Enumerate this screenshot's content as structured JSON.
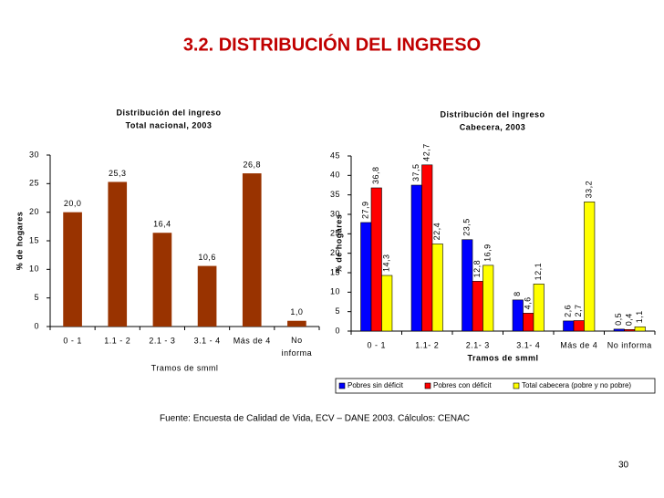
{
  "title": "3.2. DISTRIBUCIÓN DEL INGRESO",
  "source": "Fuente: Encuesta de Calidad de Vida, ECV – DANE 2003. Cálculos: CENAC",
  "page_number": "30",
  "chart_data": [
    {
      "type": "bar",
      "title": "Distribución del ingreso",
      "subtitle": "Total nacional, 2003",
      "x_label": "Tramos de smml",
      "y_label": "% de hogares",
      "categories": [
        "0 - 1",
        "1.1 - 2",
        "2.1 - 3",
        "3.1 - 4",
        "Más de 4",
        "No informa"
      ],
      "values": [
        20.0,
        25.3,
        16.4,
        10.6,
        26.8,
        1.0
      ],
      "value_labels": [
        "20,0",
        "25,3",
        "16,4",
        "10,6",
        "26,8",
        "1,0"
      ],
      "color": "#993300",
      "ylim": [
        0,
        30
      ],
      "yticks": [
        0,
        5,
        10,
        15,
        20,
        25,
        30
      ]
    },
    {
      "type": "bar",
      "title": "Distribución del ingreso",
      "subtitle": "Cabecera, 2003",
      "x_label": "Tramos de smml",
      "y_label": "% de hogares",
      "categories": [
        "0 - 1",
        "1.1- 2",
        "2.1- 3",
        "3.1- 4",
        "Más de 4",
        "No informa"
      ],
      "series": [
        {
          "name": "Pobres sin déficit",
          "color": "#0000ff",
          "values": [
            27.9,
            37.5,
            23.5,
            8,
            2.6,
            0.5
          ],
          "value_labels": [
            "27,9",
            "37,5",
            "23,5",
            "8",
            "2,6",
            "0,5"
          ]
        },
        {
          "name": "Pobres con déficit",
          "color": "#ff0000",
          "values": [
            36.8,
            42.7,
            12.8,
            4.6,
            2.7,
            0.4
          ],
          "value_labels": [
            "36,8",
            "42,7",
            "12,8",
            "4,6",
            "2,7",
            "0,4"
          ]
        },
        {
          "name": "Total cabecera (pobre y no pobre)",
          "color": "#ffff00",
          "values": [
            14.3,
            22.4,
            16.9,
            12.1,
            33.2,
            1.1
          ],
          "value_labels": [
            "14,3",
            "22,4",
            "16,9",
            "12,1",
            "33,2",
            "1,1"
          ]
        }
      ],
      "ylim": [
        0,
        45
      ],
      "yticks": [
        0,
        5,
        10,
        15,
        20,
        25,
        30,
        35,
        40,
        45
      ]
    }
  ]
}
